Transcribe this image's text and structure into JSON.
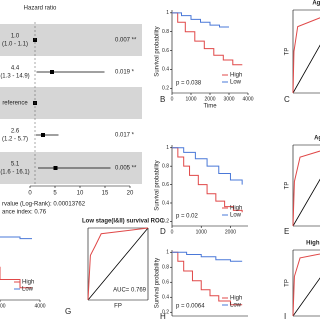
{
  "chart_data": [
    {
      "type": "forest",
      "title": "Hazard ratio",
      "values": [
        1.0,
        4.4,
        1,
        2.6,
        5.1
      ],
      "value_labels": [
        "1.0",
        "4.4",
        "reference",
        "2.6",
        "5.1"
      ],
      "ci_labels": [
        "(1.0 - 1.1)",
        "(1.3 - 14.9)",
        null,
        "(1.2 - 5.7)",
        "(1.6 - 16.1)"
      ],
      "lower": [
        1.0,
        1.3,
        null,
        1.2,
        1.6
      ],
      "upper": [
        1.1,
        14.9,
        null,
        5.7,
        16.1
      ],
      "pvalues": [
        "0.007 **",
        "0.019 *",
        null,
        "0.017 *",
        "0.005 **"
      ],
      "xlim": [
        0,
        20
      ],
      "xticks": [
        0,
        5,
        10,
        15,
        20
      ],
      "notes": [
        "rvalue (Log-Rank): 0.00013762",
        "ance index: 0.76"
      ]
    },
    {
      "type": "km",
      "panel": "B",
      "ylabel": "Survival probability",
      "xlabel": "Time",
      "annotation": "p = 0.038",
      "xlim": [
        0,
        4000
      ],
      "xticks": [
        0,
        1000,
        2000,
        3000,
        4000
      ],
      "ylim": [
        0.15,
        1.03
      ],
      "yticks": [
        0.2,
        0.4,
        0.6,
        0.8,
        1.0
      ],
      "series": [
        {
          "name": "High",
          "color": "#e04848",
          "x": [
            0,
            300,
            700,
            1200,
            1700,
            2200,
            2700,
            3200,
            3700
          ],
          "values": [
            1,
            0.9,
            0.8,
            0.7,
            0.62,
            0.55,
            0.5,
            0.45,
            0.45
          ]
        },
        {
          "name": "Low",
          "color": "#4a78d8",
          "x": [
            0,
            500,
            1000,
            1500,
            2000,
            2500,
            3000
          ],
          "values": [
            1,
            0.97,
            0.93,
            0.9,
            0.87,
            0.85,
            0.85
          ]
        }
      ]
    },
    {
      "type": "km",
      "panel": "D",
      "ylabel": "Survival probability",
      "annotation": "p = 0.02",
      "xlim": [
        0,
        2600
      ],
      "xticks": [
        0,
        1000,
        2000
      ],
      "ylim": [
        0.15,
        1.03
      ],
      "yticks": [
        0.2,
        0.4,
        0.6,
        0.8,
        1.0
      ],
      "series": [
        {
          "name": "High",
          "color": "#e04848",
          "x": [
            0,
            200,
            400,
            600,
            900,
            1200,
            1500,
            1800,
            2100,
            2400
          ],
          "values": [
            1,
            0.9,
            0.8,
            0.7,
            0.6,
            0.5,
            0.42,
            0.36,
            0.32,
            0.3
          ]
        },
        {
          "name": "Low",
          "color": "#4a78d8",
          "x": [
            0,
            400,
            800,
            1200,
            1600,
            2000,
            2400
          ],
          "values": [
            1,
            0.95,
            0.88,
            0.8,
            0.72,
            0.65,
            0.6
          ]
        }
      ]
    },
    {
      "type": "km",
      "panel": "H",
      "ylabel": "Survival probability",
      "annotation": "p = 0.0064",
      "xlim": [
        0,
        2600
      ],
      "ylim": [
        0.15,
        1.03
      ],
      "yticks": [
        0.2,
        0.4,
        0.6,
        0.8,
        1.0
      ],
      "series": [
        {
          "name": "High",
          "color": "#e04848",
          "x": [
            0,
            200,
            400,
            700,
            1000,
            1300,
            1600,
            2000,
            2400
          ],
          "values": [
            1,
            0.88,
            0.75,
            0.62,
            0.5,
            0.42,
            0.35,
            0.3,
            0.3
          ]
        },
        {
          "name": "Low",
          "color": "#4a78d8",
          "x": [
            0,
            500,
            1000,
            1500,
            2000,
            2400
          ],
          "values": [
            1,
            0.97,
            0.94,
            0.9,
            0.88,
            0.88
          ]
        }
      ]
    },
    {
      "type": "km",
      "xlim": [
        0,
        4000
      ],
      "xticks": [
        2000,
        4000
      ],
      "ylim": [
        0.15,
        1.03
      ],
      "series": [
        {
          "name": "High",
          "color": "#e04848",
          "x": [
            0,
            1000,
            2000,
            3000,
            3600
          ],
          "values": [
            0.7,
            0.55,
            0.4,
            0.3,
            0.3
          ]
        },
        {
          "name": "Low",
          "color": "#4a78d8",
          "x": [
            0,
            1500,
            3000,
            3600
          ],
          "values": [
            0.95,
            0.92,
            0.9,
            0.9
          ]
        }
      ]
    },
    {
      "type": "roc",
      "panel": "G",
      "title": "Low stage(I&II) survival ROC",
      "xlabel": "FP",
      "annotation": "AUC= 0.769",
      "xlim": [
        0,
        1
      ],
      "ylim": [
        0,
        1
      ],
      "series": [
        {
          "color": "#e04848",
          "x": [
            0,
            0.04,
            0.12,
            0.22,
            1
          ],
          "values": [
            0,
            0.62,
            0.75,
            0.92,
            1
          ]
        }
      ]
    },
    {
      "type": "roc",
      "panel": "C",
      "title": "Age<=",
      "ylabel": "TP",
      "xlim": [
        0,
        1
      ],
      "ylim": [
        0,
        1
      ],
      "series": [
        {
          "color": "#e04848",
          "x": [
            0,
            0.02,
            0.1,
            1
          ],
          "values": [
            0,
            0.5,
            0.8,
            1
          ]
        }
      ]
    },
    {
      "type": "roc",
      "panel": "E",
      "title": "Age>",
      "ylabel": "TP",
      "xlim": [
        0,
        1
      ],
      "ylim": [
        0,
        1
      ],
      "series": [
        {
          "color": "#e04848",
          "x": [
            0,
            0.03,
            0.15,
            1
          ],
          "values": [
            0,
            0.55,
            0.85,
            1
          ]
        }
      ]
    },
    {
      "type": "roc",
      "panel": "I",
      "title": "High stage",
      "ylabel": "TP",
      "xlim": [
        0,
        1
      ],
      "ylim": [
        0,
        1
      ],
      "series": [
        {
          "color": "#e04848",
          "x": [
            0,
            0.03,
            0.15,
            1
          ],
          "values": [
            0,
            0.6,
            0.88,
            1
          ]
        }
      ]
    }
  ]
}
